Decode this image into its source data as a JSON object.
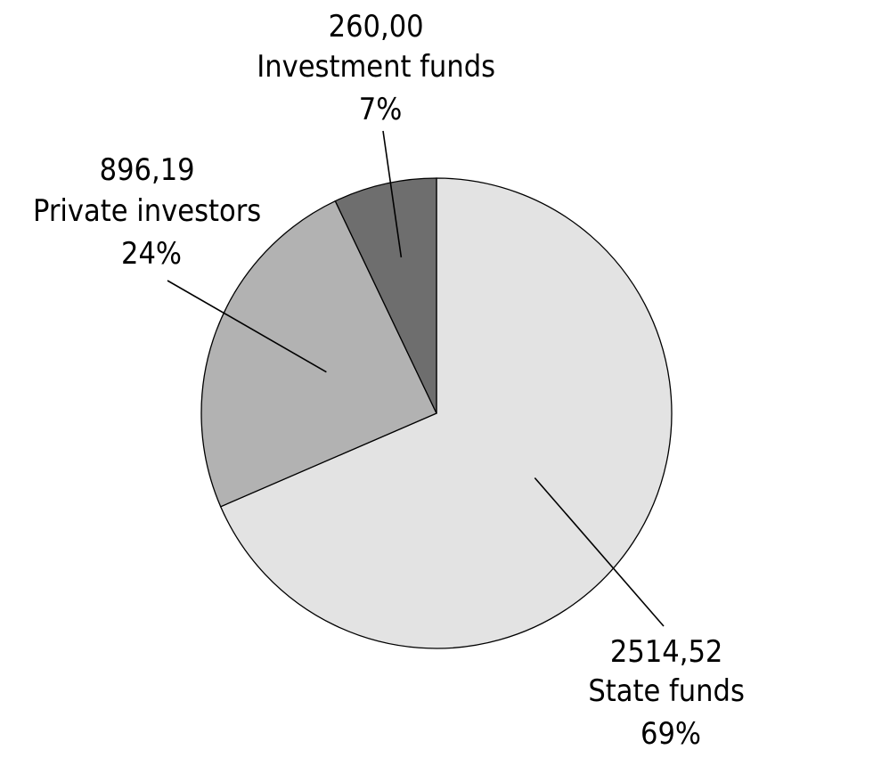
{
  "chart_data": {
    "type": "pie",
    "start": "top",
    "direction": "clockwise",
    "slices": [
      {
        "value_label": "2514,52",
        "value": 2514.52,
        "label": "State funds",
        "percent_label": "69%",
        "color": "#e3e3e3"
      },
      {
        "value_label": "896,19",
        "value": 896.19,
        "label": "Private investors",
        "percent_label": "24%",
        "color": "#b2b2b2"
      },
      {
        "value_label": "260,00",
        "value": 260.0,
        "label": "Investment funds",
        "percent_label": "7%",
        "color": "#6e6e6e"
      }
    ]
  }
}
